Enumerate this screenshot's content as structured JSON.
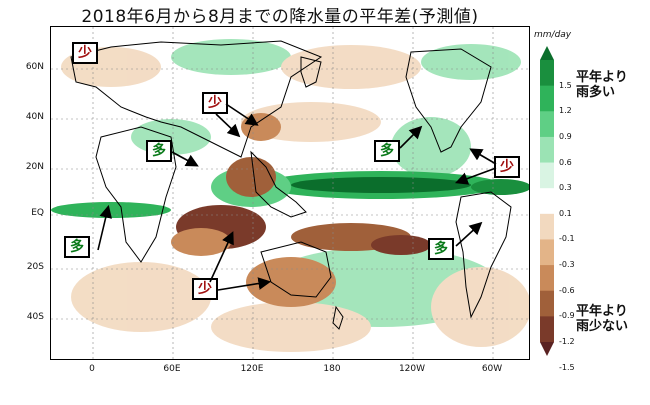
{
  "title": "2018年6月から8月までの降水量の平年差(予測値)",
  "units": "mm/day",
  "lat_labels": [
    "60N",
    "40N",
    "20N",
    "EQ",
    "20S",
    "40S"
  ],
  "lon_labels": [
    "0",
    "60E",
    "120E",
    "180",
    "120W",
    "60W"
  ],
  "legend": {
    "ticks": [
      "1.5",
      "1.2",
      "0.9",
      "0.6",
      "0.3",
      "0.1",
      "-0.1",
      "-0.3",
      "-0.6",
      "-0.9",
      "-1.2",
      "-1.5"
    ],
    "top_note_1": "平年より",
    "top_note_2": "雨多い",
    "bottom_note_1": "平年より",
    "bottom_note_2": "雨少ない",
    "colors": [
      "#0b6e2c",
      "#1a8f3e",
      "#2fb35a",
      "#5fcf85",
      "#9be3b4",
      "#d9f4e3",
      "#ffffff",
      "#f2d9bf",
      "#e3b488",
      "#c98a5a",
      "#a0603a",
      "#7a3a2a",
      "#5a2222"
    ]
  },
  "labels": {
    "dry": "少",
    "wet": "多"
  }
}
